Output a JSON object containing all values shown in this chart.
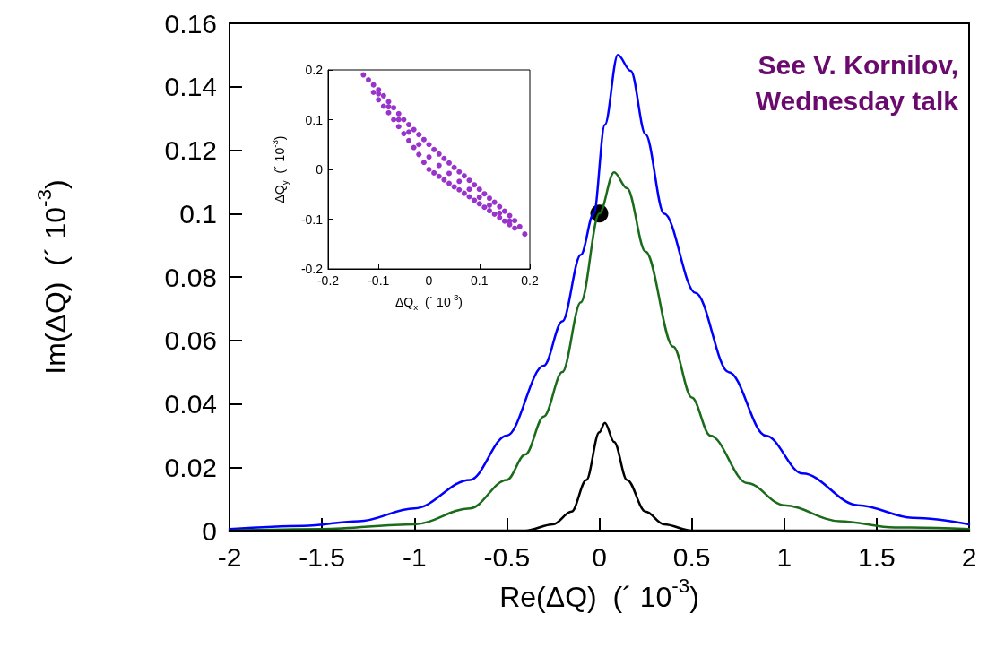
{
  "chart_data": [
    {
      "type": "line",
      "xlabel": "Re(ΔQ)  (´ 10$^{-3}$)",
      "ylabel": "Im(ΔQ)  (´ 10$^{-3}$)",
      "xlim": [
        -2,
        2
      ],
      "xticks": [
        -2,
        -1.5,
        -1,
        -0.5,
        0,
        0.5,
        1,
        1.5,
        2
      ],
      "ylim": [
        0,
        0.16
      ],
      "yticks": [
        0,
        0.02,
        0.04,
        0.06,
        0.08,
        0.1,
        0.12,
        0.14,
        0.16
      ],
      "grid": false,
      "marker": "none",
      "line_style": "solid",
      "annotations": [
        "See V. Kornilov,\nWednesday talk"
      ],
      "series": [
        {
          "color": "#0000ff",
          "x": [
            -2,
            -1.6,
            -1.3,
            -1,
            -0.7,
            -0.5,
            -0.3,
            -0.2,
            -0.1,
            -0.03,
            0.03,
            0.1,
            0.17,
            0.25,
            0.35,
            0.52,
            0.7,
            0.9,
            1.1,
            1.4,
            1.7,
            2
          ],
          "values": [
            0.0005,
            0.0015,
            0.003,
            0.007,
            0.016,
            0.03,
            0.052,
            0.066,
            0.087,
            0.1,
            0.128,
            0.15,
            0.145,
            0.125,
            0.1,
            0.075,
            0.05,
            0.03,
            0.018,
            0.008,
            0.004,
            0.002
          ]
        },
        {
          "color": "#1a6b1a",
          "x": [
            -2,
            -1.5,
            -1,
            -0.7,
            -0.5,
            -0.4,
            -0.3,
            -0.2,
            -0.1,
            0,
            0.08,
            0.15,
            0.25,
            0.4,
            0.5,
            0.6,
            0.8,
            1,
            1.3,
            1.6,
            2
          ],
          "values": [
            0,
            0.0005,
            0.002,
            0.007,
            0.016,
            0.024,
            0.036,
            0.05,
            0.072,
            0.1,
            0.113,
            0.108,
            0.088,
            0.058,
            0.042,
            0.03,
            0.015,
            0.008,
            0.003,
            0.001,
            0.0005
          ]
        },
        {
          "color": "#000000",
          "x": [
            -2,
            -0.4,
            -0.25,
            -0.15,
            -0.07,
            0,
            0.03,
            0.08,
            0.15,
            0.25,
            0.35,
            0.5,
            2
          ],
          "values": [
            0,
            0,
            0.002,
            0.006,
            0.016,
            0.031,
            0.034,
            0.028,
            0.016,
            0.006,
            0.002,
            0,
            0
          ]
        },
        {
          "type": "scatter",
          "marker": "circle",
          "color": "#000000",
          "x": [
            0
          ],
          "values": [
            0.1
          ]
        }
      ]
    },
    {
      "type": "scatter",
      "xlabel": "ΔQ$_{x}$  (´ 10$^{-3}$)",
      "ylabel": "ΔQ$_{y}$  (´ 10$^{-3}$)",
      "xlim": [
        -0.2,
        0.2
      ],
      "xticks": [
        -0.2,
        -0.1,
        0,
        0.1,
        0.2
      ],
      "ylim": [
        -0.2,
        0.2
      ],
      "yticks": [
        -0.2,
        -0.1,
        0,
        0.1,
        0.2
      ],
      "grid": false,
      "marker": "circle",
      "series": [
        {
          "color": "#9933cc",
          "x": [
            -0.13,
            -0.12,
            -0.11,
            -0.1,
            -0.09,
            -0.08,
            -0.07,
            -0.06,
            -0.05,
            -0.04,
            -0.03,
            -0.02,
            -0.01,
            0,
            0.01,
            0.02,
            0.03,
            0.04,
            0.05,
            0.06,
            0.07,
            0.08,
            0.09,
            0.1,
            0.11,
            0.12,
            0.13,
            0.14,
            0.15,
            0.16,
            0.17,
            0.18,
            0.19,
            -0.11,
            -0.1,
            -0.09,
            -0.08,
            -0.07,
            -0.06,
            -0.05,
            -0.04,
            -0.03,
            -0.02,
            -0.01,
            0,
            0.01,
            0.02,
            0.03,
            0.04,
            0.05,
            0.06,
            0.07,
            0.08,
            0.09,
            0.1,
            0.11,
            0.12,
            0.13,
            0.14,
            0.15,
            0.16,
            0.17,
            -0.1,
            -0.08,
            -0.06,
            -0.04,
            -0.02,
            0,
            0.02,
            0.04,
            0.06,
            0.08,
            0.1,
            0.12,
            0.14,
            0.16
          ],
          "values": [
            0.19,
            0.18,
            0.17,
            0.16,
            0.148,
            0.136,
            0.124,
            0.112,
            0.1,
            0.09,
            0.08,
            0.07,
            0.06,
            0.05,
            0.04,
            0.031,
            0.022,
            0.013,
            0.004,
            -0.005,
            -0.013,
            -0.022,
            -0.031,
            -0.04,
            -0.049,
            -0.058,
            -0.066,
            -0.075,
            -0.084,
            -0.093,
            -0.103,
            -0.115,
            -0.13,
            0.155,
            0.14,
            0.127,
            0.114,
            0.1,
            0.086,
            0.072,
            0.058,
            0.044,
            0.03,
            0.014,
            0,
            -0.007,
            -0.014,
            -0.021,
            -0.028,
            -0.035,
            -0.041,
            -0.048,
            -0.055,
            -0.062,
            -0.069,
            -0.076,
            -0.083,
            -0.09,
            -0.097,
            -0.104,
            -0.111,
            -0.118,
            0.152,
            0.126,
            0.1,
            0.075,
            0.05,
            0.025,
            0.008,
            -0.008,
            -0.024,
            -0.04,
            -0.056,
            -0.072,
            -0.088,
            -0.104
          ]
        }
      ]
    }
  ]
}
